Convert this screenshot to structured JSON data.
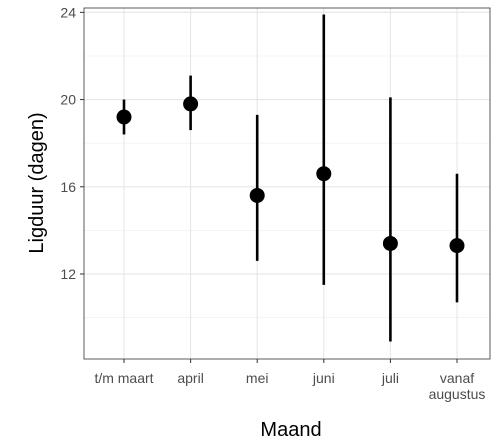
{
  "chart_data": {
    "type": "scatter",
    "title": "",
    "xlabel": "Maand",
    "ylabel": "Ligduur (dagen)",
    "categories": [
      "t/m maart",
      "april",
      "mei",
      "juni",
      "juli",
      "vanaf augustus"
    ],
    "category_lines": [
      [
        "t/m maart"
      ],
      [
        "april"
      ],
      [
        "mei"
      ],
      [
        "juni"
      ],
      [
        "juli"
      ],
      [
        "vanaf",
        "augustus"
      ]
    ],
    "values": [
      19.2,
      19.8,
      15.6,
      16.6,
      13.4,
      13.3
    ],
    "lower": [
      18.4,
      18.6,
      12.6,
      11.5,
      8.9,
      10.7
    ],
    "upper": [
      20.0,
      21.1,
      19.3,
      23.9,
      20.1,
      16.6
    ],
    "ylim": [
      8.1,
      24.2
    ],
    "yticks": [
      12,
      16,
      20,
      24
    ],
    "grid": true,
    "colors": {
      "points": "#000000",
      "grid": "#e6e6e6",
      "panel_border": "#333333",
      "tick_labels": "#4d4d4d"
    }
  }
}
